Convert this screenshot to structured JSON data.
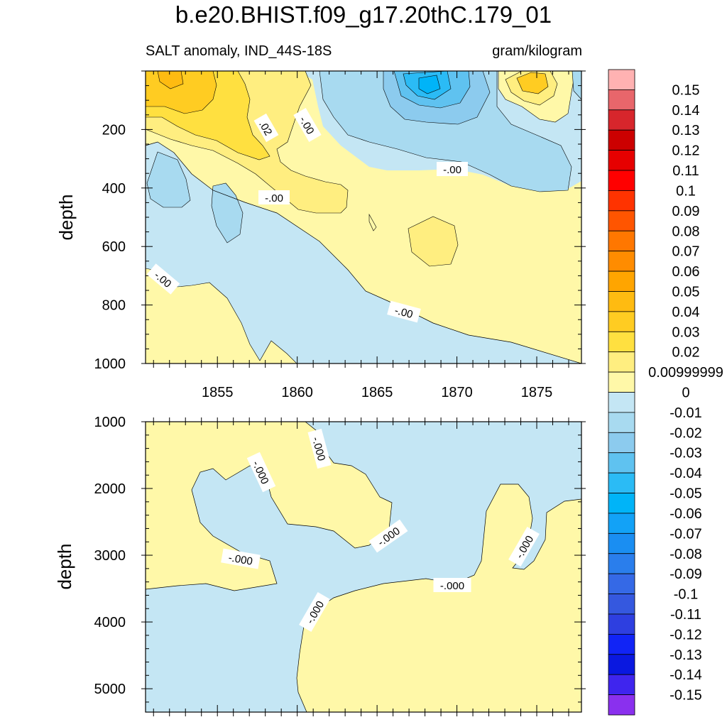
{
  "header": {
    "title": "b.e20.BHIST.f09_g17.20thC.179_01",
    "left_subtitle": "SALT anomaly, IND_44S-18S",
    "right_subtitle": "gram/kilogram"
  },
  "chart_data": [
    {
      "type": "contour",
      "panel": "upper",
      "title": "b.e20.BHIST.f09_g17.20thC.179_01",
      "subtitle_left": "SALT anomaly, IND_44S-18S",
      "subtitle_right": "gram/kilogram",
      "xlabel": "",
      "ylabel": "depth",
      "xlim": [
        1850.5,
        1877.8
      ],
      "ylim": [
        1000,
        0
      ],
      "xticks": [
        "1855",
        "1860",
        "1865",
        "1870",
        "1875"
      ],
      "yticks": [
        "200",
        "400",
        "600",
        "800",
        "1000"
      ],
      "contour_labels": [
        ".02",
        "-.00",
        "-.00",
        "-.00",
        "-.00",
        "-.00"
      ]
    },
    {
      "type": "contour",
      "panel": "lower",
      "xlabel": "",
      "ylabel": "depth",
      "ylim": [
        5350,
        1000
      ],
      "yticks": [
        "1000",
        "2000",
        "3000",
        "4000",
        "5000"
      ],
      "contour_labels": [
        "-.000",
        "-.000",
        "-.000",
        "-.000",
        "-.000",
        "-.000",
        "-.000"
      ]
    }
  ],
  "colorbar": {
    "labels": [
      "0.15",
      "0.14",
      "0.13",
      "0.12",
      "0.11",
      "0.1",
      "0.09",
      "0.08",
      "0.07",
      "0.06",
      "0.05",
      "0.04",
      "0.03",
      "0.02",
      "0.00999999",
      "0",
      "-0.01",
      "-0.02",
      "-0.03",
      "-0.04",
      "-0.05",
      "-0.06",
      "-0.07",
      "-0.08",
      "-0.09",
      "-0.1",
      "-0.11",
      "-0.12",
      "-0.13",
      "-0.14",
      "-0.15"
    ],
    "colors": [
      "#FFB2B2",
      "#E8666B",
      "#D7262C",
      "#CC0000",
      "#E60000",
      "#FF0000",
      "#FF3300",
      "#FF5500",
      "#FF7700",
      "#FF8C00",
      "#FFA500",
      "#FFBB11",
      "#FFCC22",
      "#FFE040",
      "#FFEE80",
      "#FFF8A8",
      "#C4E6F4",
      "#A8DAF0",
      "#8CCBEE",
      "#5FC2F0",
      "#2BBBF5",
      "#00B4F8",
      "#12A2F7",
      "#1A8EF2",
      "#2A7EEC",
      "#3569E6",
      "#3558DF",
      "#2E3FE0",
      "#1124F6",
      "#0A18E0",
      "#3F25EE",
      "#8A30EE"
    ]
  },
  "colors": {
    "frame": "#000000",
    "contour_line": "#000000"
  }
}
